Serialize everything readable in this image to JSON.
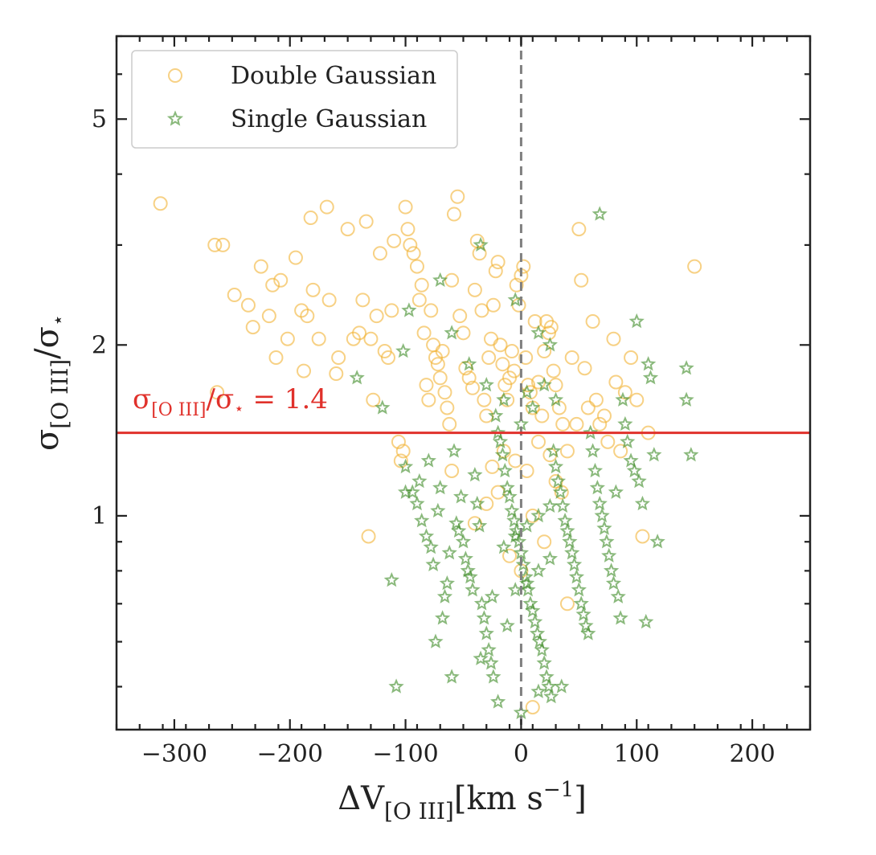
{
  "chart_data": {
    "type": "scatter",
    "xlabel_main": "ΔV",
    "xlabel_sub": "[O III]",
    "xlabel_unit": "[km s",
    "xlabel_exp": "−1",
    "xlabel_close": "]",
    "ylabel_sigma": "σ",
    "ylabel_sub": "[O III]",
    "ylabel_slash": "/σ",
    "ylabel_star": "⋆",
    "xlim": [
      -350,
      250
    ],
    "ylim": [
      0.42,
      7.0
    ],
    "yscale": "log",
    "x_ticks": [
      -300,
      -200,
      -100,
      0,
      100,
      200
    ],
    "x_tick_labels": [
      "−300",
      "−200",
      "−100",
      "0",
      "100",
      "200"
    ],
    "y_ticks": [
      1,
      2,
      5
    ],
    "y_tick_labels": [
      "1",
      "2",
      "5"
    ],
    "vertical_line": {
      "x": 0,
      "style": "dashed",
      "color": "#808080"
    },
    "horizontal_line": {
      "y": 1.4,
      "color": "#e0312b"
    },
    "annotation": {
      "sigma": "σ",
      "sub": "[O III]",
      "slash": "/σ",
      "star": "⋆",
      "eq": " = 1.4",
      "color": "#e0312b"
    },
    "legend_position": "upper-left",
    "series": [
      {
        "name": "Double Gaussian",
        "marker": "open-circle",
        "color": "#f2b233",
        "points": [
          [
            -312,
            3.55
          ],
          [
            -265,
            3.0
          ],
          [
            -258,
            3.0
          ],
          [
            -263,
            1.65
          ],
          [
            -248,
            2.45
          ],
          [
            -236,
            2.35
          ],
          [
            -232,
            2.15
          ],
          [
            -225,
            2.75
          ],
          [
            -218,
            2.25
          ],
          [
            -215,
            2.55
          ],
          [
            -212,
            1.9
          ],
          [
            -208,
            2.6
          ],
          [
            -202,
            2.05
          ],
          [
            -195,
            2.85
          ],
          [
            -190,
            2.3
          ],
          [
            -188,
            1.8
          ],
          [
            -185,
            2.25
          ],
          [
            -182,
            3.35
          ],
          [
            -180,
            2.5
          ],
          [
            -175,
            2.05
          ],
          [
            -168,
            3.5
          ],
          [
            -166,
            2.4
          ],
          [
            -160,
            1.78
          ],
          [
            -158,
            1.9
          ],
          [
            -150,
            3.2
          ],
          [
            -145,
            2.05
          ],
          [
            -140,
            2.1
          ],
          [
            -137,
            2.4
          ],
          [
            -134,
            3.3
          ],
          [
            -130,
            2.05
          ],
          [
            -128,
            1.6
          ],
          [
            -125,
            2.25
          ],
          [
            -122,
            2.9
          ],
          [
            -118,
            1.95
          ],
          [
            -115,
            1.9
          ],
          [
            -112,
            2.3
          ],
          [
            -110,
            3.05
          ],
          [
            -106,
            1.35
          ],
          [
            -104,
            1.25
          ],
          [
            -102,
            1.3
          ],
          [
            -100,
            3.5
          ],
          [
            -98,
            3.2
          ],
          [
            -96,
            3.0
          ],
          [
            -93,
            2.9
          ],
          [
            -90,
            2.75
          ],
          [
            -88,
            2.4
          ],
          [
            -86,
            2.55
          ],
          [
            -84,
            2.1
          ],
          [
            -82,
            1.7
          ],
          [
            -80,
            1.6
          ],
          [
            -78,
            2.3
          ],
          [
            -76,
            2.0
          ],
          [
            -74,
            1.9
          ],
          [
            -72,
            1.85
          ],
          [
            -70,
            1.75
          ],
          [
            -68,
            1.95
          ],
          [
            -66,
            1.65
          ],
          [
            -64,
            1.55
          ],
          [
            -62,
            1.45
          ],
          [
            -60,
            2.6
          ],
          [
            -58,
            3.4
          ],
          [
            -55,
            3.65
          ],
          [
            -53,
            2.25
          ],
          [
            -50,
            2.1
          ],
          [
            -48,
            1.82
          ],
          [
            -45,
            1.75
          ],
          [
            -42,
            1.68
          ],
          [
            -40,
            2.5
          ],
          [
            -38,
            3.05
          ],
          [
            -36,
            2.9
          ],
          [
            -34,
            2.3
          ],
          [
            -32,
            1.6
          ],
          [
            -30,
            1.5
          ],
          [
            -28,
            1.9
          ],
          [
            -26,
            2.05
          ],
          [
            -24,
            2.35
          ],
          [
            -22,
            2.7
          ],
          [
            -20,
            2.8
          ],
          [
            -18,
            2.0
          ],
          [
            -16,
            1.85
          ],
          [
            -14,
            1.7
          ],
          [
            -12,
            1.6
          ],
          [
            -10,
            1.75
          ],
          [
            -8,
            1.95
          ],
          [
            -6,
            1.8
          ],
          [
            -4,
            2.55
          ],
          [
            -2,
            2.35
          ],
          [
            0,
            2.65
          ],
          [
            2,
            2.75
          ],
          [
            4,
            1.9
          ],
          [
            6,
            1.7
          ],
          [
            8,
            1.65
          ],
          [
            10,
            1.55
          ],
          [
            12,
            2.2
          ],
          [
            15,
            1.72
          ],
          [
            18,
            1.5
          ],
          [
            20,
            1.95
          ],
          [
            22,
            2.2
          ],
          [
            24,
            2.1
          ],
          [
            26,
            2.15
          ],
          [
            28,
            1.8
          ],
          [
            30,
            1.7
          ],
          [
            33,
            1.55
          ],
          [
            36,
            1.45
          ],
          [
            40,
            1.3
          ],
          [
            44,
            1.9
          ],
          [
            48,
            1.45
          ],
          [
            50,
            3.2
          ],
          [
            52,
            2.6
          ],
          [
            55,
            1.82
          ],
          [
            58,
            1.55
          ],
          [
            62,
            2.2
          ],
          [
            65,
            1.6
          ],
          [
            68,
            1.45
          ],
          [
            72,
            1.5
          ],
          [
            75,
            1.35
          ],
          [
            80,
            2.05
          ],
          [
            82,
            1.72
          ],
          [
            86,
            1.3
          ],
          [
            90,
            1.65
          ],
          [
            95,
            1.9
          ],
          [
            100,
            1.6
          ],
          [
            105,
            0.92
          ],
          [
            110,
            1.4
          ],
          [
            150,
            2.75
          ],
          [
            -40,
            0.97
          ],
          [
            -30,
            1.05
          ],
          [
            -20,
            1.1
          ],
          [
            -10,
            0.85
          ],
          [
            0,
            0.8
          ],
          [
            10,
            1.0
          ],
          [
            20,
            0.9
          ],
          [
            30,
            1.15
          ],
          [
            40,
            0.7
          ],
          [
            -60,
            1.2
          ],
          [
            -132,
            0.92
          ],
          [
            10,
            0.46
          ],
          [
            -5,
            1.25
          ],
          [
            5,
            1.2
          ],
          [
            -15,
            1.3
          ],
          [
            15,
            1.35
          ],
          [
            25,
            1.28
          ],
          [
            -25,
            1.22
          ],
          [
            35,
            1.1
          ]
        ]
      },
      {
        "name": "Single Gaussian",
        "marker": "open-star",
        "color": "#3c8b25",
        "points": [
          [
            -142,
            1.75
          ],
          [
            -120,
            1.55
          ],
          [
            -112,
            0.77
          ],
          [
            -108,
            0.5
          ],
          [
            -102,
            1.95
          ],
          [
            -100,
            1.22
          ],
          [
            -97,
            2.3
          ],
          [
            -94,
            1.1
          ],
          [
            -90,
            1.05
          ],
          [
            -88,
            1.15
          ],
          [
            -86,
            0.98
          ],
          [
            -82,
            0.92
          ],
          [
            -80,
            1.25
          ],
          [
            -78,
            0.88
          ],
          [
            -76,
            0.82
          ],
          [
            -74,
            0.6
          ],
          [
            -72,
            1.02
          ],
          [
            -70,
            1.12
          ],
          [
            -68,
            0.66
          ],
          [
            -66,
            0.72
          ],
          [
            -64,
            0.76
          ],
          [
            -62,
            0.86
          ],
          [
            -60,
            0.52
          ],
          [
            -58,
            1.3
          ],
          [
            -56,
            0.97
          ],
          [
            -54,
            0.94
          ],
          [
            -52,
            1.08
          ],
          [
            -50,
            0.9
          ],
          [
            -48,
            0.84
          ],
          [
            -46,
            0.8
          ],
          [
            -44,
            0.78
          ],
          [
            -42,
            0.74
          ],
          [
            -40,
            1.18
          ],
          [
            -38,
            1.05
          ],
          [
            -36,
            0.96
          ],
          [
            -34,
            0.7
          ],
          [
            -32,
            0.66
          ],
          [
            -30,
            0.62
          ],
          [
            -28,
            0.58
          ],
          [
            -26,
            0.55
          ],
          [
            -24,
            0.52
          ],
          [
            -22,
            1.5
          ],
          [
            -20,
            1.4
          ],
          [
            -18,
            1.35
          ],
          [
            -16,
            1.28
          ],
          [
            -14,
            1.2
          ],
          [
            -12,
            1.12
          ],
          [
            -10,
            1.08
          ],
          [
            -8,
            1.02
          ],
          [
            -6,
            0.98
          ],
          [
            -4,
            0.94
          ],
          [
            -2,
            0.9
          ],
          [
            0,
            0.86
          ],
          [
            2,
            0.82
          ],
          [
            4,
            0.78
          ],
          [
            6,
            0.74
          ],
          [
            8,
            0.7
          ],
          [
            10,
            0.68
          ],
          [
            12,
            0.65
          ],
          [
            14,
            0.62
          ],
          [
            16,
            0.6
          ],
          [
            18,
            0.58
          ],
          [
            20,
            0.55
          ],
          [
            22,
            0.52
          ],
          [
            24,
            0.5
          ],
          [
            26,
            0.48
          ],
          [
            28,
            1.3
          ],
          [
            30,
            1.22
          ],
          [
            32,
            1.15
          ],
          [
            34,
            1.1
          ],
          [
            36,
            1.04
          ],
          [
            38,
            0.98
          ],
          [
            40,
            0.94
          ],
          [
            42,
            0.9
          ],
          [
            44,
            0.86
          ],
          [
            46,
            0.82
          ],
          [
            48,
            0.78
          ],
          [
            50,
            0.74
          ],
          [
            52,
            0.7
          ],
          [
            54,
            0.67
          ],
          [
            56,
            0.64
          ],
          [
            58,
            0.62
          ],
          [
            60,
            1.4
          ],
          [
            62,
            1.3
          ],
          [
            64,
            1.2
          ],
          [
            66,
            1.12
          ],
          [
            68,
            1.05
          ],
          [
            70,
            1.0
          ],
          [
            72,
            0.95
          ],
          [
            74,
            0.9
          ],
          [
            76,
            0.85
          ],
          [
            78,
            0.8
          ],
          [
            80,
            0.76
          ],
          [
            82,
            1.1
          ],
          [
            84,
            0.72
          ],
          [
            86,
            0.66
          ],
          [
            88,
            1.6
          ],
          [
            90,
            1.45
          ],
          [
            92,
            1.35
          ],
          [
            95,
            1.25
          ],
          [
            98,
            1.2
          ],
          [
            100,
            2.2
          ],
          [
            102,
            1.15
          ],
          [
            105,
            1.05
          ],
          [
            108,
            0.65
          ],
          [
            110,
            1.85
          ],
          [
            112,
            1.75
          ],
          [
            115,
            1.28
          ],
          [
            118,
            0.9
          ],
          [
            143,
            1.82
          ],
          [
            143,
            1.6
          ],
          [
            147,
            1.28
          ],
          [
            68,
            3.4
          ],
          [
            -35,
            3.0
          ],
          [
            -70,
            2.6
          ],
          [
            -60,
            2.1
          ],
          [
            -5,
            2.4
          ],
          [
            15,
            2.1
          ],
          [
            25,
            2.0
          ],
          [
            -45,
            1.85
          ],
          [
            -30,
            1.7
          ],
          [
            10,
            1.55
          ],
          [
            0,
            1.45
          ],
          [
            -15,
            1.6
          ],
          [
            5,
            1.65
          ],
          [
            20,
            1.7
          ],
          [
            30,
            1.6
          ],
          [
            -100,
            1.1
          ],
          [
            0,
            0.45
          ],
          [
            -20,
            0.47
          ],
          [
            15,
            0.49
          ],
          [
            -35,
            0.56
          ],
          [
            35,
            0.5
          ],
          [
            -25,
            0.72
          ],
          [
            -5,
            0.74
          ],
          [
            5,
            0.76
          ],
          [
            15,
            0.8
          ],
          [
            25,
            0.84
          ],
          [
            -15,
            0.88
          ],
          [
            -5,
            0.92
          ],
          [
            5,
            0.96
          ],
          [
            15,
            1.0
          ],
          [
            25,
            1.04
          ],
          [
            -12,
            0.64
          ]
        ]
      }
    ]
  }
}
